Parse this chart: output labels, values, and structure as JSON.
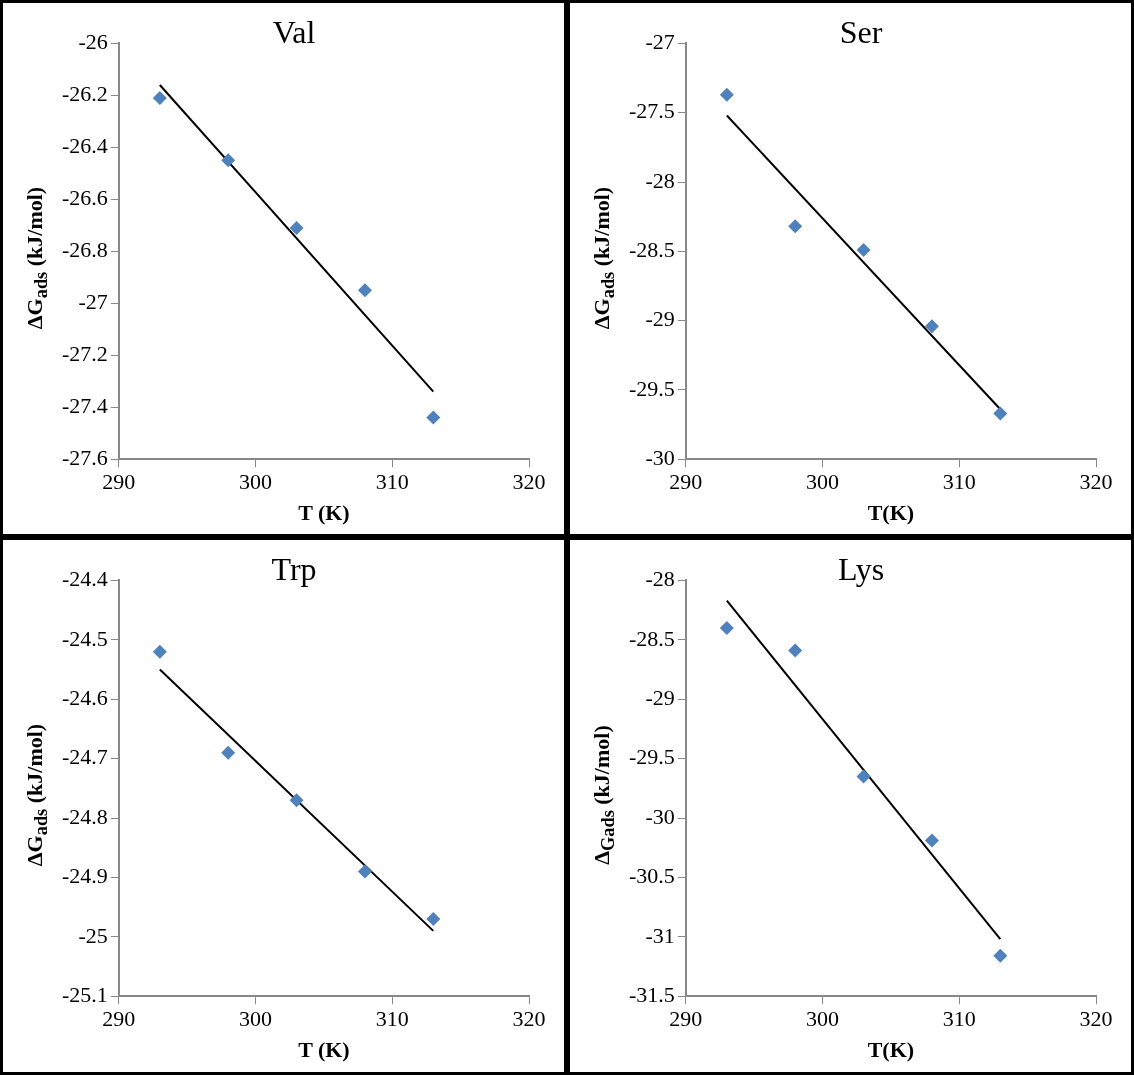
{
  "chart_data": [
    {
      "type": "scatter",
      "title": "Val",
      "xlabel": "T (K)",
      "ylabel": "ΔG$_{ads}$ (kJ/mol)",
      "xlim": [
        290,
        320
      ],
      "xticks": [
        290,
        300,
        310,
        320
      ],
      "ylim": [
        -27.6,
        -26
      ],
      "yticks": [
        -27.6,
        -27.4,
        -27.2,
        -27,
        -26.8,
        -26.6,
        -26.4,
        -26.2,
        -26
      ],
      "grid": false,
      "legend": false,
      "series": [
        {
          "type": "scatter",
          "color": "#4f81bd",
          "marker": "diamond",
          "x": [
            293,
            298,
            303,
            308,
            313
          ],
          "values": [
            -26.21,
            -26.45,
            -26.71,
            -26.95,
            -27.44
          ]
        },
        {
          "type": "line",
          "color": "#000000",
          "marker": "none",
          "line_style": "solid",
          "x": [
            293,
            313
          ],
          "values": [
            -26.16,
            -27.34
          ]
        }
      ]
    },
    {
      "type": "scatter",
      "title": "Ser",
      "xlabel": "T(K)",
      "ylabel": "ΔG$_{ads}$ (kJ/mol)",
      "xlim": [
        290,
        320
      ],
      "xticks": [
        290,
        300,
        310,
        320
      ],
      "ylim": [
        -30,
        -27
      ],
      "yticks": [
        -30,
        -29.5,
        -29,
        -28.5,
        -28,
        -27.5,
        -27
      ],
      "grid": false,
      "legend": false,
      "series": [
        {
          "type": "scatter",
          "color": "#4f81bd",
          "marker": "diamond",
          "x": [
            293,
            298,
            303,
            308,
            313
          ],
          "values": [
            -27.37,
            -28.32,
            -28.49,
            -29.04,
            -29.67
          ]
        },
        {
          "type": "line",
          "color": "#000000",
          "marker": "none",
          "line_style": "solid",
          "x": [
            293,
            313
          ],
          "values": [
            -27.52,
            -29.64
          ]
        }
      ]
    },
    {
      "type": "scatter",
      "title": "Trp",
      "xlabel": "T (K)",
      "ylabel": "ΔG$_{ads}$ (kJ/mol)",
      "xlim": [
        290,
        320
      ],
      "xticks": [
        290,
        300,
        310,
        320
      ],
      "ylim": [
        -25.1,
        -24.4
      ],
      "yticks": [
        -25.1,
        -25,
        -24.9,
        -24.8,
        -24.7,
        -24.6,
        -24.5,
        -24.4
      ],
      "grid": false,
      "legend": false,
      "series": [
        {
          "type": "scatter",
          "color": "#4f81bd",
          "marker": "diamond",
          "x": [
            293,
            298,
            303,
            308,
            313
          ],
          "values": [
            -24.52,
            -24.69,
            -24.77,
            -24.89,
            -24.97
          ]
        },
        {
          "type": "line",
          "color": "#000000",
          "marker": "none",
          "line_style": "solid",
          "x": [
            293,
            313
          ],
          "values": [
            -24.55,
            -24.99
          ]
        }
      ]
    },
    {
      "type": "scatter",
      "title": "Lys",
      "xlabel": "T(K)",
      "ylabel": "Δ$_{Gads}$ (kJ/mol)",
      "xlim": [
        290,
        320
      ],
      "xticks": [
        290,
        300,
        310,
        320
      ],
      "ylim": [
        -31.5,
        -28
      ],
      "yticks": [
        -31.5,
        -31,
        -30.5,
        -30,
        -29.5,
        -29,
        -28.5,
        -28
      ],
      "grid": false,
      "legend": false,
      "series": [
        {
          "type": "scatter",
          "color": "#4f81bd",
          "marker": "diamond",
          "x": [
            293,
            298,
            303,
            308,
            313
          ],
          "values": [
            -28.4,
            -28.59,
            -29.65,
            -30.19,
            -31.16
          ]
        },
        {
          "type": "line",
          "color": "#000000",
          "marker": "none",
          "line_style": "solid",
          "x": [
            293,
            313
          ],
          "values": [
            -28.17,
            -31.02
          ]
        }
      ]
    }
  ]
}
